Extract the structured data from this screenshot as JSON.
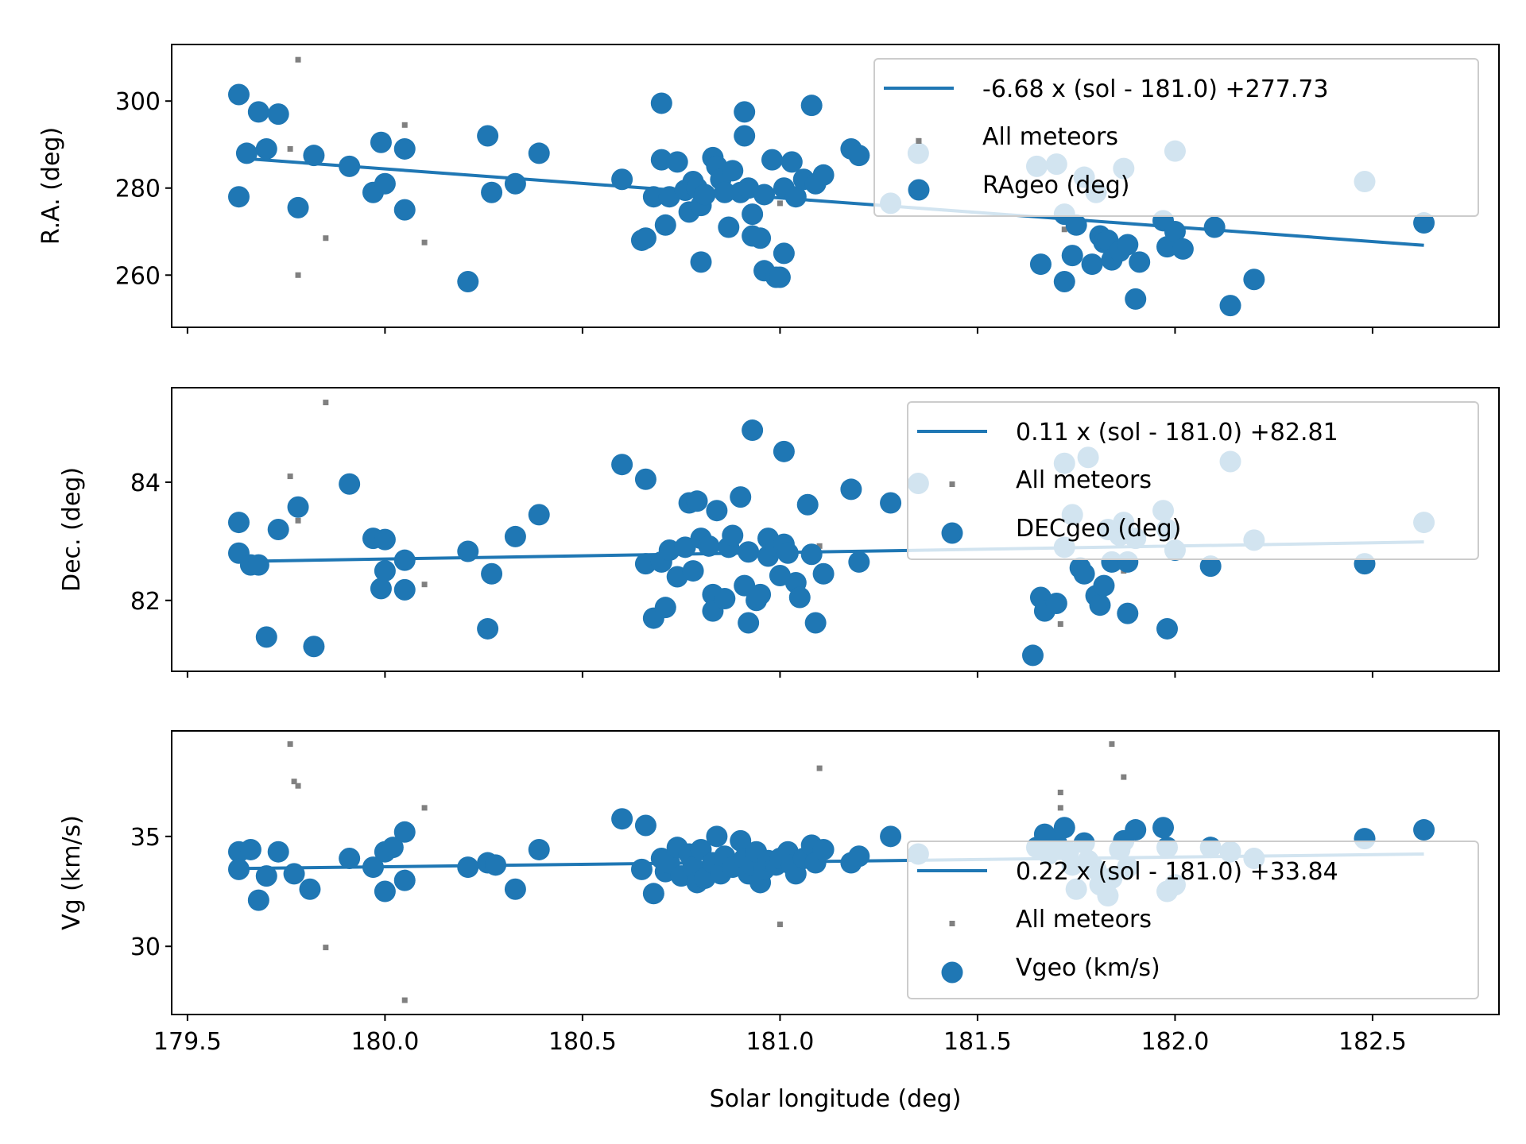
{
  "figure": {
    "xlabel": "Solar longitude (deg)",
    "xticks": [
      "179.5",
      "180.0",
      "180.5",
      "181.0",
      "181.5",
      "182.0",
      "182.5"
    ]
  },
  "chart_data": [
    {
      "type": "scatter",
      "ylabel": "R.A. (deg)",
      "xlim": [
        179.46,
        182.82
      ],
      "ylim": [
        248,
        313
      ],
      "yticks": [
        260,
        280,
        300
      ],
      "colors": {
        "series": "#1f77b4",
        "all": "#808080"
      },
      "legend": {
        "placement": "top-right",
        "fit_label": "-6.68 x (sol - 181.0) +277.73",
        "all_label": "All meteors",
        "series_label": "RAgeo (deg)"
      },
      "fit": {
        "slope": -6.68,
        "intercept": 277.73,
        "x0": 181.0,
        "x_range": [
          179.63,
          182.63
        ]
      },
      "all_meteors": [
        [
          179.78,
          309.5
        ],
        [
          179.76,
          289
        ],
        [
          180.05,
          294.5
        ],
        [
          179.85,
          268.5
        ],
        [
          180.1,
          267.5
        ],
        [
          179.78,
          260
        ],
        [
          181.0,
          276.5
        ],
        [
          181.35,
          291
        ],
        [
          181.72,
          270.5
        ]
      ],
      "points": [
        [
          179.63,
          301.5
        ],
        [
          179.65,
          288
        ],
        [
          179.68,
          297.5
        ],
        [
          179.7,
          289
        ],
        [
          179.73,
          297
        ],
        [
          179.63,
          278
        ],
        [
          179.82,
          287.5
        ],
        [
          179.78,
          275.5
        ],
        [
          179.91,
          285
        ],
        [
          179.97,
          279
        ],
        [
          180.0,
          281
        ],
        [
          179.99,
          290.5
        ],
        [
          180.05,
          289
        ],
        [
          180.05,
          275
        ],
        [
          180.21,
          258.5
        ],
        [
          180.26,
          292
        ],
        [
          180.27,
          279
        ],
        [
          180.33,
          281
        ],
        [
          180.39,
          288
        ],
        [
          180.6,
          282
        ],
        [
          180.65,
          268
        ],
        [
          180.66,
          268.5
        ],
        [
          180.68,
          278
        ],
        [
          180.7,
          286.5
        ],
        [
          180.7,
          299.5
        ],
        [
          180.71,
          271.5
        ],
        [
          180.72,
          278
        ],
        [
          180.74,
          286
        ],
        [
          180.76,
          279.5
        ],
        [
          180.77,
          274.5
        ],
        [
          180.78,
          281.5
        ],
        [
          180.79,
          280
        ],
        [
          180.8,
          276
        ],
        [
          180.8,
          263
        ],
        [
          180.81,
          278.5
        ],
        [
          180.83,
          287
        ],
        [
          180.84,
          285
        ],
        [
          180.85,
          282
        ],
        [
          180.86,
          279
        ],
        [
          180.87,
          271
        ],
        [
          180.88,
          284
        ],
        [
          180.9,
          279
        ],
        [
          180.91,
          297.5
        ],
        [
          180.91,
          292
        ],
        [
          180.92,
          280
        ],
        [
          180.93,
          274
        ],
        [
          180.93,
          269
        ],
        [
          180.95,
          268.5
        ],
        [
          180.96,
          278.5
        ],
        [
          180.96,
          261
        ],
        [
          180.98,
          286.5
        ],
        [
          180.99,
          259.5
        ],
        [
          181.0,
          259.5
        ],
        [
          181.01,
          265
        ],
        [
          181.01,
          280
        ],
        [
          181.03,
          286
        ],
        [
          181.04,
          278
        ],
        [
          181.06,
          282
        ],
        [
          181.08,
          299
        ],
        [
          181.09,
          281
        ],
        [
          181.11,
          283
        ],
        [
          181.18,
          289
        ],
        [
          181.2,
          287.5
        ],
        [
          181.28,
          276.5
        ],
        [
          181.35,
          288
        ],
        [
          181.65,
          285
        ],
        [
          181.66,
          262.5
        ],
        [
          181.7,
          285.5
        ],
        [
          181.72,
          274
        ],
        [
          181.72,
          258.5
        ],
        [
          181.74,
          264.5
        ],
        [
          181.75,
          271.5
        ],
        [
          181.77,
          282.5
        ],
        [
          181.79,
          262.5
        ],
        [
          181.8,
          279
        ],
        [
          181.81,
          269
        ],
        [
          181.82,
          267.5
        ],
        [
          181.83,
          268
        ],
        [
          181.84,
          263.5
        ],
        [
          181.86,
          265.5
        ],
        [
          181.87,
          284.5
        ],
        [
          181.88,
          267
        ],
        [
          181.9,
          254.5
        ],
        [
          181.91,
          263
        ],
        [
          181.97,
          272.5
        ],
        [
          181.98,
          266.5
        ],
        [
          182.0,
          270
        ],
        [
          182.0,
          288.5
        ],
        [
          182.02,
          266
        ],
        [
          182.1,
          271
        ],
        [
          182.14,
          253
        ],
        [
          182.2,
          259
        ],
        [
          182.48,
          281.5
        ],
        [
          182.63,
          272
        ]
      ]
    },
    {
      "type": "scatter",
      "ylabel": "Dec. (deg)",
      "xlim": [
        179.46,
        182.82
      ],
      "ylim": [
        80.8,
        85.6
      ],
      "yticks": [
        82,
        84
      ],
      "colors": {
        "series": "#1f77b4",
        "all": "#808080"
      },
      "legend": {
        "placement": "top-right",
        "fit_label": "0.11 x (sol - 181.0) +82.81",
        "all_label": "All meteors",
        "series_label": "DECgeo (deg)"
      },
      "fit": {
        "slope": 0.11,
        "intercept": 82.81,
        "x0": 181.0,
        "x_range": [
          179.63,
          182.63
        ]
      },
      "all_meteors": [
        [
          179.85,
          85.35
        ],
        [
          179.76,
          84.1
        ],
        [
          179.78,
          83.35
        ],
        [
          180.1,
          82.27
        ],
        [
          181.1,
          82.92
        ],
        [
          181.71,
          81.6
        ],
        [
          181.87,
          82.5
        ]
      ],
      "points": [
        [
          179.63,
          83.32
        ],
        [
          179.63,
          82.8
        ],
        [
          179.66,
          82.6
        ],
        [
          179.68,
          82.6
        ],
        [
          179.7,
          81.38
        ],
        [
          179.73,
          83.2
        ],
        [
          179.78,
          83.58
        ],
        [
          179.82,
          81.22
        ],
        [
          179.91,
          83.97
        ],
        [
          179.97,
          83.05
        ],
        [
          179.99,
          82.2
        ],
        [
          180.0,
          82.5
        ],
        [
          180.0,
          83.03
        ],
        [
          180.05,
          82.68
        ],
        [
          180.05,
          82.18
        ],
        [
          180.21,
          82.83
        ],
        [
          180.26,
          81.52
        ],
        [
          180.27,
          82.45
        ],
        [
          180.33,
          83.08
        ],
        [
          180.39,
          83.45
        ],
        [
          180.6,
          84.3
        ],
        [
          180.66,
          84.05
        ],
        [
          180.66,
          82.62
        ],
        [
          180.68,
          81.7
        ],
        [
          180.7,
          82.65
        ],
        [
          180.71,
          81.88
        ],
        [
          180.72,
          82.85
        ],
        [
          180.74,
          82.4
        ],
        [
          180.76,
          82.9
        ],
        [
          180.77,
          83.65
        ],
        [
          180.78,
          82.5
        ],
        [
          180.79,
          83.68
        ],
        [
          180.8,
          83.05
        ],
        [
          180.82,
          82.92
        ],
        [
          180.83,
          82.1
        ],
        [
          180.83,
          81.82
        ],
        [
          180.84,
          83.52
        ],
        [
          180.86,
          82.03
        ],
        [
          180.87,
          82.9
        ],
        [
          180.88,
          83.1
        ],
        [
          180.9,
          83.75
        ],
        [
          180.91,
          82.25
        ],
        [
          180.92,
          81.62
        ],
        [
          180.92,
          82.82
        ],
        [
          180.93,
          84.88
        ],
        [
          180.94,
          82.0
        ],
        [
          180.95,
          82.1
        ],
        [
          180.97,
          82.75
        ],
        [
          180.97,
          83.05
        ],
        [
          180.99,
          82.92
        ],
        [
          181.0,
          82.42
        ],
        [
          181.01,
          82.95
        ],
        [
          181.01,
          84.52
        ],
        [
          181.02,
          82.8
        ],
        [
          181.04,
          82.3
        ],
        [
          181.05,
          82.05
        ],
        [
          181.07,
          83.62
        ],
        [
          181.08,
          82.78
        ],
        [
          181.09,
          81.62
        ],
        [
          181.11,
          82.45
        ],
        [
          181.18,
          83.88
        ],
        [
          181.2,
          82.65
        ],
        [
          181.28,
          83.65
        ],
        [
          181.35,
          83.98
        ],
        [
          181.64,
          81.07
        ],
        [
          181.66,
          82.05
        ],
        [
          181.67,
          81.82
        ],
        [
          181.7,
          81.95
        ],
        [
          181.72,
          84.32
        ],
        [
          181.72,
          82.9
        ],
        [
          181.74,
          83.45
        ],
        [
          181.76,
          82.55
        ],
        [
          181.77,
          82.45
        ],
        [
          181.78,
          84.42
        ],
        [
          181.8,
          82.08
        ],
        [
          181.81,
          81.92
        ],
        [
          181.82,
          82.25
        ],
        [
          181.83,
          83.2
        ],
        [
          181.84,
          82.65
        ],
        [
          181.86,
          83.1
        ],
        [
          181.87,
          83.32
        ],
        [
          181.88,
          81.78
        ],
        [
          181.88,
          82.65
        ],
        [
          181.9,
          83.05
        ],
        [
          181.97,
          83.52
        ],
        [
          181.98,
          81.52
        ],
        [
          181.98,
          83.2
        ],
        [
          182.0,
          82.85
        ],
        [
          182.09,
          82.58
        ],
        [
          182.14,
          84.35
        ],
        [
          182.2,
          83.02
        ],
        [
          182.48,
          82.62
        ],
        [
          182.63,
          83.32
        ]
      ]
    },
    {
      "type": "scatter",
      "ylabel": "Vg (km/s)",
      "xlim": [
        179.46,
        182.82
      ],
      "ylim": [
        26.9,
        39.8
      ],
      "yticks": [
        30,
        35
      ],
      "colors": {
        "series": "#1f77b4",
        "all": "#808080"
      },
      "legend": {
        "placement": "bottom-right",
        "fit_label": "0.22 x (sol - 181.0) +33.84",
        "all_label": "All meteors",
        "series_label": "Vgeo (km/s)"
      },
      "fit": {
        "slope": 0.22,
        "intercept": 33.84,
        "x0": 181.0,
        "x_range": [
          179.63,
          182.63
        ]
      },
      "all_meteors": [
        [
          179.76,
          39.2
        ],
        [
          179.77,
          37.5
        ],
        [
          179.78,
          37.3
        ],
        [
          179.85,
          29.95
        ],
        [
          180.05,
          27.55
        ],
        [
          180.1,
          36.3
        ],
        [
          181.0,
          31.0
        ],
        [
          181.1,
          38.1
        ],
        [
          181.71,
          37.0
        ],
        [
          181.71,
          36.3
        ],
        [
          181.84,
          39.2
        ],
        [
          181.87,
          37.7
        ]
      ],
      "points": [
        [
          179.63,
          34.3
        ],
        [
          179.63,
          33.5
        ],
        [
          179.66,
          34.4
        ],
        [
          179.68,
          32.1
        ],
        [
          179.7,
          33.2
        ],
        [
          179.73,
          34.3
        ],
        [
          179.77,
          33.3
        ],
        [
          179.81,
          32.6
        ],
        [
          179.91,
          34.0
        ],
        [
          179.97,
          33.6
        ],
        [
          180.0,
          34.3
        ],
        [
          180.0,
          32.5
        ],
        [
          180.02,
          34.5
        ],
        [
          180.05,
          35.2
        ],
        [
          180.05,
          33.0
        ],
        [
          180.21,
          33.6
        ],
        [
          180.26,
          33.8
        ],
        [
          180.28,
          33.7
        ],
        [
          180.33,
          32.6
        ],
        [
          180.39,
          34.4
        ],
        [
          180.6,
          35.8
        ],
        [
          180.65,
          33.5
        ],
        [
          180.66,
          35.5
        ],
        [
          180.68,
          32.4
        ],
        [
          180.7,
          34.0
        ],
        [
          180.71,
          33.4
        ],
        [
          180.72,
          33.8
        ],
        [
          180.74,
          34.5
        ],
        [
          180.75,
          33.2
        ],
        [
          180.77,
          34.2
        ],
        [
          180.78,
          33.6
        ],
        [
          180.79,
          32.9
        ],
        [
          180.8,
          34.4
        ],
        [
          180.81,
          33.1
        ],
        [
          180.83,
          33.8
        ],
        [
          180.84,
          35.0
        ],
        [
          180.85,
          33.3
        ],
        [
          180.86,
          34.1
        ],
        [
          180.88,
          33.6
        ],
        [
          180.9,
          34.8
        ],
        [
          180.91,
          34.0
        ],
        [
          180.92,
          33.3
        ],
        [
          180.93,
          33.7
        ],
        [
          180.94,
          34.3
        ],
        [
          180.95,
          32.9
        ],
        [
          180.96,
          33.5
        ],
        [
          180.97,
          33.9
        ],
        [
          180.99,
          33.7
        ],
        [
          181.0,
          34.0
        ],
        [
          181.02,
          34.3
        ],
        [
          181.03,
          33.7
        ],
        [
          181.04,
          33.3
        ],
        [
          181.06,
          34.0
        ],
        [
          181.08,
          34.6
        ],
        [
          181.09,
          33.8
        ],
        [
          181.11,
          34.4
        ],
        [
          181.18,
          33.8
        ],
        [
          181.2,
          34.1
        ],
        [
          181.28,
          35.0
        ],
        [
          181.35,
          34.2
        ],
        [
          181.65,
          34.5
        ],
        [
          181.67,
          35.1
        ],
        [
          181.68,
          34.2
        ],
        [
          181.7,
          34.7
        ],
        [
          181.72,
          35.4
        ],
        [
          181.73,
          34.3
        ],
        [
          181.74,
          33.7
        ],
        [
          181.75,
          32.6
        ],
        [
          181.77,
          34.7
        ],
        [
          181.78,
          33.9
        ],
        [
          181.8,
          33.5
        ],
        [
          181.81,
          32.8
        ],
        [
          181.83,
          32.3
        ],
        [
          181.84,
          33.1
        ],
        [
          181.86,
          34.4
        ],
        [
          181.87,
          34.8
        ],
        [
          181.88,
          33.6
        ],
        [
          181.9,
          35.3
        ],
        [
          181.97,
          35.4
        ],
        [
          181.98,
          34.5
        ],
        [
          181.98,
          32.5
        ],
        [
          182.0,
          32.8
        ],
        [
          182.09,
          34.5
        ],
        [
          182.14,
          34.3
        ],
        [
          182.2,
          34.0
        ],
        [
          182.48,
          34.9
        ],
        [
          182.63,
          35.3
        ]
      ]
    }
  ]
}
